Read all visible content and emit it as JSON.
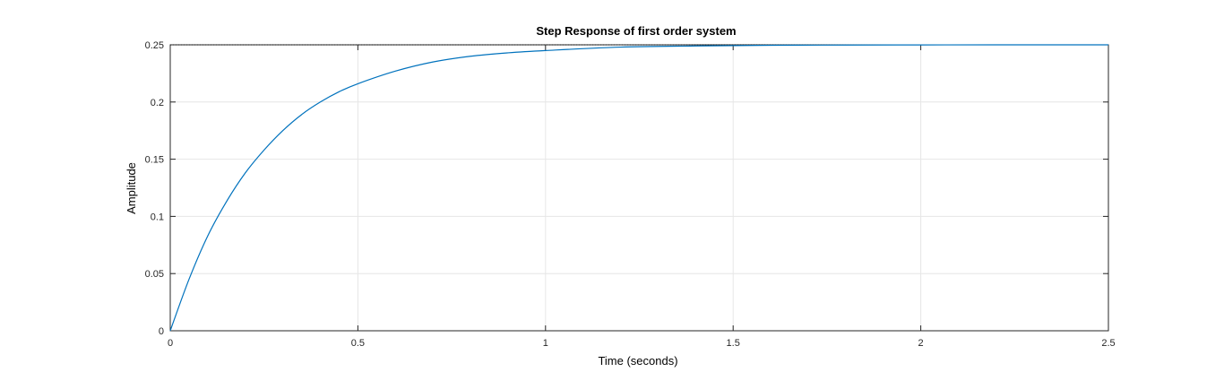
{
  "chart_data": {
    "type": "line",
    "title": "Step Response of first order system",
    "xlabel": "Time (seconds)",
    "ylabel": "Amplitude",
    "xlim": [
      0,
      2.5
    ],
    "ylim": [
      0,
      0.25
    ],
    "xticks": [
      "0",
      "0.5",
      "1",
      "1.5",
      "2",
      "2.5"
    ],
    "yticks": [
      "0",
      "0.05",
      "0.1",
      "0.15",
      "0.2",
      "0.25"
    ],
    "grid": true,
    "steady_state_value": 0.25,
    "line_color": "#0072BD",
    "series": [
      {
        "x": [
          0,
          0.05,
          0.1,
          0.15,
          0.2,
          0.25,
          0.3,
          0.35,
          0.4,
          0.45,
          0.5,
          0.6,
          0.7,
          0.8,
          0.9,
          1.0,
          1.2,
          1.4,
          1.6,
          1.8,
          2.0,
          2.2,
          2.5
        ],
        "values": [
          0,
          0.045,
          0.083,
          0.113,
          0.138,
          0.158,
          0.175,
          0.189,
          0.2,
          0.209,
          0.216,
          0.227,
          0.235,
          0.24,
          0.243,
          0.245,
          0.248,
          0.249,
          0.2496,
          0.2498,
          0.2499,
          0.25,
          0.25
        ]
      }
    ]
  }
}
